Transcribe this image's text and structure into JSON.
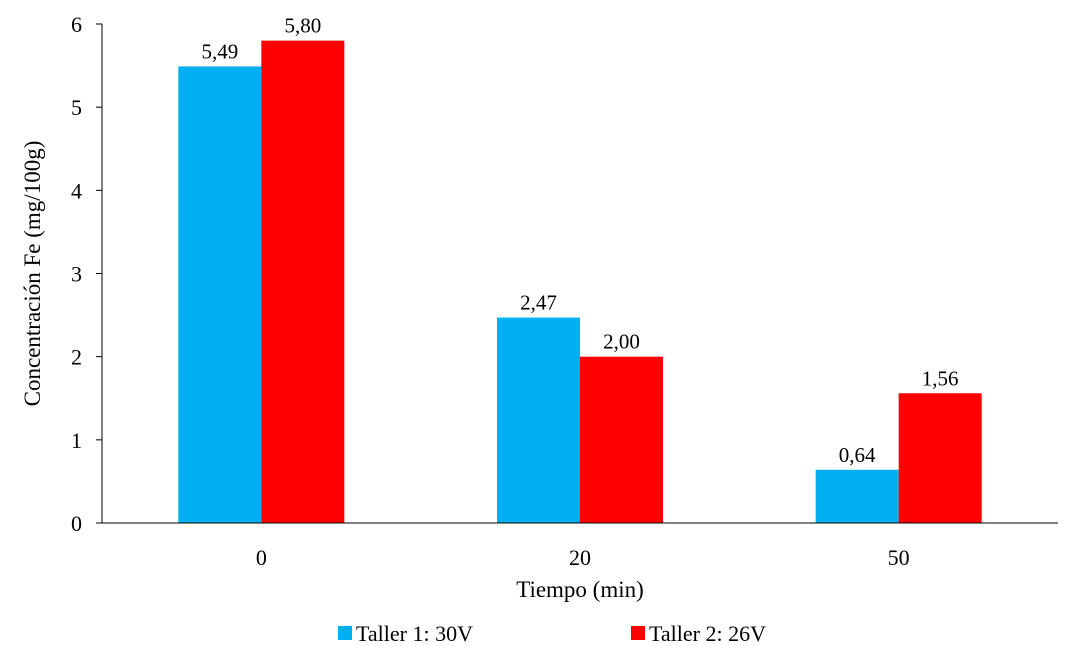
{
  "chart_data": {
    "type": "bar",
    "categories": [
      "0",
      "20",
      "50"
    ],
    "series": [
      {
        "name": "Taller 1: 30V",
        "color": "#00b0f0",
        "values": [
          5.49,
          2.47,
          0.64
        ],
        "labels": [
          "5,49",
          "2,47",
          "0,64"
        ]
      },
      {
        "name": "Taller 2: 26V",
        "color": "#ff0000",
        "values": [
          5.8,
          2.0,
          1.56
        ],
        "labels": [
          "5,80",
          "2,00",
          "1,56"
        ]
      }
    ],
    "title": "",
    "xlabel": "Tiempo (min)",
    "ylabel": "Concentración Fe (mg/100g)",
    "ylim": [
      0,
      6
    ],
    "yticks": [
      "0",
      "1",
      "2",
      "3",
      "4",
      "5",
      "6"
    ],
    "grid": false,
    "legend": "bottom"
  }
}
